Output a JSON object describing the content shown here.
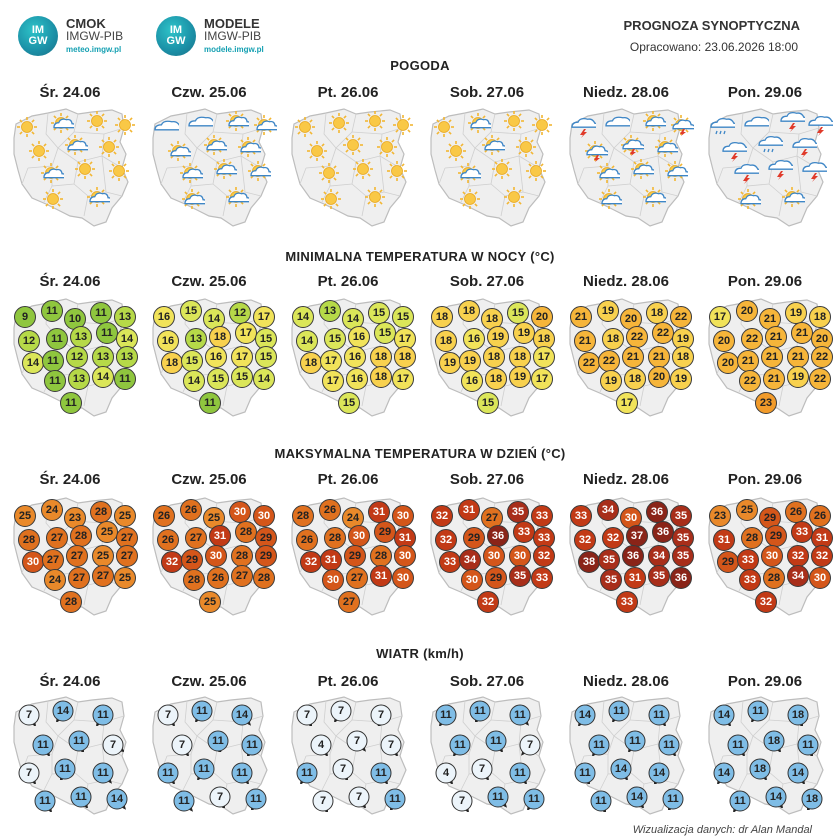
{
  "header": {
    "logo1": {
      "badge_top": "IM",
      "badge_bottom": "GW",
      "title": "CMOK",
      "subtitle": "IMGW-PIB",
      "url": "meteo.imgw.pl"
    },
    "logo2": {
      "badge_top": "IM",
      "badge_bottom": "GW",
      "title": "MODELE",
      "subtitle": "IMGW-PIB",
      "url": "modele.imgw.pl"
    },
    "title": "PROGNOZA SYNOPTYCZNA",
    "subtitle": "Opracowano: 23.06.2026 18:00"
  },
  "days": [
    "Śr. 24.06",
    "Czw. 25.06",
    "Pt. 26.06",
    "Sob. 27.06",
    "Niedz. 28.06",
    "Pon. 29.06"
  ],
  "sections": {
    "weather": "POGODA",
    "tmin": "MINIMALNA TEMPERATURA W NOCY (°C)",
    "tmax": "MAKSYMALNA TEMPERATURA W DZIEŃ (°C)",
    "wind": "WIATR (km/h)"
  },
  "weather": [
    [
      "sun",
      "sun-cloud",
      "sun",
      "sun",
      "sun",
      "sun-cloud",
      "sun",
      "sun-cloud",
      "sun",
      "sun",
      "sun",
      "sun-cloud"
    ],
    [
      "cloud",
      "cloud",
      "sun-cloud",
      "sun-cloud",
      "sun-cloud",
      "sun-cloud",
      "sun-cloud",
      "sun-cloud",
      "sun-cloud",
      "sun-cloud",
      "sun-cloud",
      "sun-cloud"
    ],
    [
      "sun",
      "sun",
      "sun",
      "sun",
      "sun",
      "sun",
      "sun",
      "sun",
      "sun",
      "sun",
      "sun",
      "sun"
    ],
    [
      "sun",
      "sun-cloud",
      "sun",
      "sun",
      "sun",
      "sun-cloud",
      "sun",
      "sun-cloud",
      "sun",
      "sun",
      "sun",
      "sun"
    ],
    [
      "storm",
      "cloud",
      "sun-cloud",
      "sun-storm",
      "sun-storm",
      "sun-storm",
      "sun-cloud",
      "sun-cloud",
      "sun-cloud",
      "sun-cloud",
      "sun-cloud",
      "sun-cloud"
    ],
    [
      "rain",
      "cloud",
      "storm",
      "storm",
      "storm",
      "rain",
      "storm",
      "storm",
      "storm",
      "storm",
      "sun-cloud",
      "sun-cloud"
    ]
  ],
  "tmin": [
    [
      9,
      11,
      10,
      11,
      13,
      12,
      11,
      13,
      11,
      14,
      14,
      11,
      12,
      13,
      13,
      11,
      13,
      14,
      11,
      11
    ],
    [
      16,
      15,
      14,
      12,
      17,
      16,
      13,
      18,
      17,
      15,
      18,
      15,
      16,
      17,
      15,
      14,
      15,
      15,
      14,
      11
    ],
    [
      14,
      13,
      14,
      15,
      15,
      14,
      15,
      16,
      15,
      17,
      18,
      17,
      16,
      18,
      18,
      17,
      16,
      18,
      17,
      15
    ],
    [
      18,
      18,
      18,
      15,
      20,
      18,
      16,
      19,
      19,
      18,
      19,
      19,
      18,
      18,
      17,
      16,
      18,
      19,
      17,
      15
    ],
    [
      21,
      19,
      20,
      18,
      22,
      21,
      18,
      22,
      22,
      19,
      22,
      22,
      21,
      21,
      18,
      19,
      18,
      20,
      19,
      17
    ],
    [
      17,
      20,
      21,
      19,
      18,
      20,
      22,
      21,
      21,
      20,
      20,
      21,
      21,
      21,
      22,
      22,
      21,
      19,
      22,
      23
    ]
  ],
  "tmax": [
    [
      25,
      24,
      23,
      28,
      25,
      28,
      27,
      28,
      25,
      27,
      30,
      27,
      27,
      25,
      27,
      24,
      27,
      27,
      25,
      28
    ],
    [
      26,
      26,
      25,
      30,
      30,
      26,
      27,
      31,
      28,
      29,
      32,
      29,
      30,
      28,
      29,
      28,
      26,
      27,
      28,
      25
    ],
    [
      28,
      26,
      24,
      31,
      30,
      26,
      28,
      30,
      29,
      31,
      32,
      31,
      29,
      28,
      30,
      30,
      27,
      31,
      30,
      27
    ],
    [
      32,
      31,
      27,
      35,
      33,
      32,
      29,
      36,
      33,
      33,
      33,
      34,
      30,
      30,
      32,
      30,
      29,
      35,
      33,
      32
    ],
    [
      33,
      34,
      30,
      36,
      35,
      32,
      32,
      37,
      36,
      35,
      38,
      35,
      36,
      34,
      35,
      35,
      31,
      35,
      36,
      33
    ],
    [
      23,
      25,
      29,
      26,
      26,
      31,
      28,
      29,
      33,
      31,
      29,
      33,
      30,
      32,
      32,
      33,
      28,
      34,
      30,
      32
    ]
  ],
  "wind": [
    [
      7,
      14,
      11,
      11,
      11,
      7,
      7,
      11,
      11,
      11,
      11,
      14
    ],
    [
      7,
      11,
      14,
      7,
      11,
      11,
      11,
      11,
      11,
      11,
      7,
      11
    ],
    [
      7,
      7,
      7,
      4,
      7,
      7,
      11,
      7,
      11,
      7,
      7,
      11
    ],
    [
      11,
      11,
      11,
      11,
      11,
      7,
      4,
      7,
      11,
      7,
      11,
      11
    ],
    [
      14,
      11,
      11,
      11,
      11,
      11,
      11,
      14,
      14,
      11,
      14,
      11
    ],
    [
      14,
      11,
      18,
      11,
      18,
      11,
      14,
      18,
      14,
      11,
      14,
      18
    ]
  ],
  "colors": {
    "scale_min": [
      "#8fc63e",
      "#b6d948",
      "#dbe659",
      "#f1e35a",
      "#f8d14e",
      "#f6b53a",
      "#f29b2a"
    ],
    "scale_max": [
      "#e9892a",
      "#e0711f",
      "#d4561a",
      "#c23a16",
      "#a82e1a",
      "#8a2418"
    ],
    "wind_low": "#ecf4fa",
    "wind_high": "#7fbde6"
  },
  "footer": "Wizualizacja danych: dr Alan Mandal"
}
